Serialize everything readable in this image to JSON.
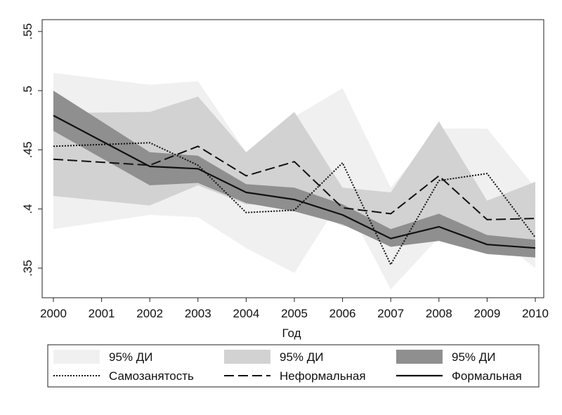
{
  "chart_data": {
    "type": "line",
    "xlabel": "Год",
    "ylabel": "",
    "x": [
      2000,
      2001,
      2002,
      2003,
      2004,
      2005,
      2006,
      2007,
      2008,
      2009,
      2010
    ],
    "x_ticks": [
      "2000",
      "2001",
      "2002",
      "2003",
      "2004",
      "2005",
      "2006",
      "2007",
      "2008",
      "2009",
      "2010"
    ],
    "ylim": [
      0.325,
      0.56
    ],
    "y_ticks": [
      0.35,
      0.4,
      0.45,
      0.5,
      0.55
    ],
    "y_tick_labels": [
      ".35",
      ".4",
      ".45",
      ".5",
      ".55"
    ],
    "grid": false,
    "legend_position": "bottom",
    "bands": [
      {
        "label": "95% ДИ",
        "color": "#f0f0f0",
        "x": [
          2000,
          2002,
          2003,
          2004,
          2005,
          2006,
          2007,
          2008,
          2009,
          2010
        ],
        "upper": [
          0.515,
          0.505,
          0.508,
          0.448,
          0.478,
          0.502,
          0.418,
          0.468,
          0.468,
          0.418
        ],
        "lower": [
          0.383,
          0.395,
          0.393,
          0.367,
          0.346,
          0.41,
          0.332,
          0.376,
          0.382,
          0.35
        ]
      },
      {
        "label": "95% ДИ",
        "color": "#d2d2d2",
        "x": [
          2000,
          2002,
          2003,
          2004,
          2005,
          2006,
          2007,
          2008,
          2009,
          2010
        ],
        "upper": [
          0.481,
          0.482,
          0.495,
          0.448,
          0.482,
          0.418,
          0.414,
          0.474,
          0.407,
          0.423
        ],
        "lower": [
          0.411,
          0.403,
          0.42,
          0.404,
          0.402,
          0.386,
          0.378,
          0.382,
          0.375,
          0.361
        ]
      },
      {
        "label": "95% ДИ",
        "color": "#8f8f8f",
        "x": [
          2000,
          2002,
          2003,
          2004,
          2005,
          2006,
          2007,
          2008,
          2009,
          2010
        ],
        "upper": [
          0.5,
          0.448,
          0.445,
          0.421,
          0.418,
          0.404,
          0.383,
          0.396,
          0.378,
          0.374
        ],
        "lower": [
          0.466,
          0.42,
          0.422,
          0.405,
          0.398,
          0.387,
          0.368,
          0.373,
          0.362,
          0.359
        ]
      }
    ],
    "series": [
      {
        "name": "Самозанятость",
        "style": "dotted",
        "x": [
          2000,
          2002,
          2003,
          2004,
          2005,
          2006,
          2007,
          2008,
          2009,
          2010
        ],
        "values": [
          0.453,
          0.456,
          0.437,
          0.397,
          0.399,
          0.439,
          0.353,
          0.424,
          0.43,
          0.376
        ]
      },
      {
        "name": "Неформальная",
        "style": "dashed",
        "x": [
          2000,
          2002,
          2003,
          2004,
          2005,
          2006,
          2007,
          2008,
          2009,
          2010
        ],
        "values": [
          0.442,
          0.437,
          0.453,
          0.428,
          0.44,
          0.401,
          0.396,
          0.428,
          0.391,
          0.392
        ]
      },
      {
        "name": "Формальная",
        "style": "solid",
        "x": [
          2000,
          2002,
          2003,
          2004,
          2005,
          2006,
          2007,
          2008,
          2009,
          2010
        ],
        "values": [
          0.479,
          0.436,
          0.434,
          0.414,
          0.408,
          0.395,
          0.375,
          0.385,
          0.37,
          0.367
        ]
      }
    ]
  }
}
